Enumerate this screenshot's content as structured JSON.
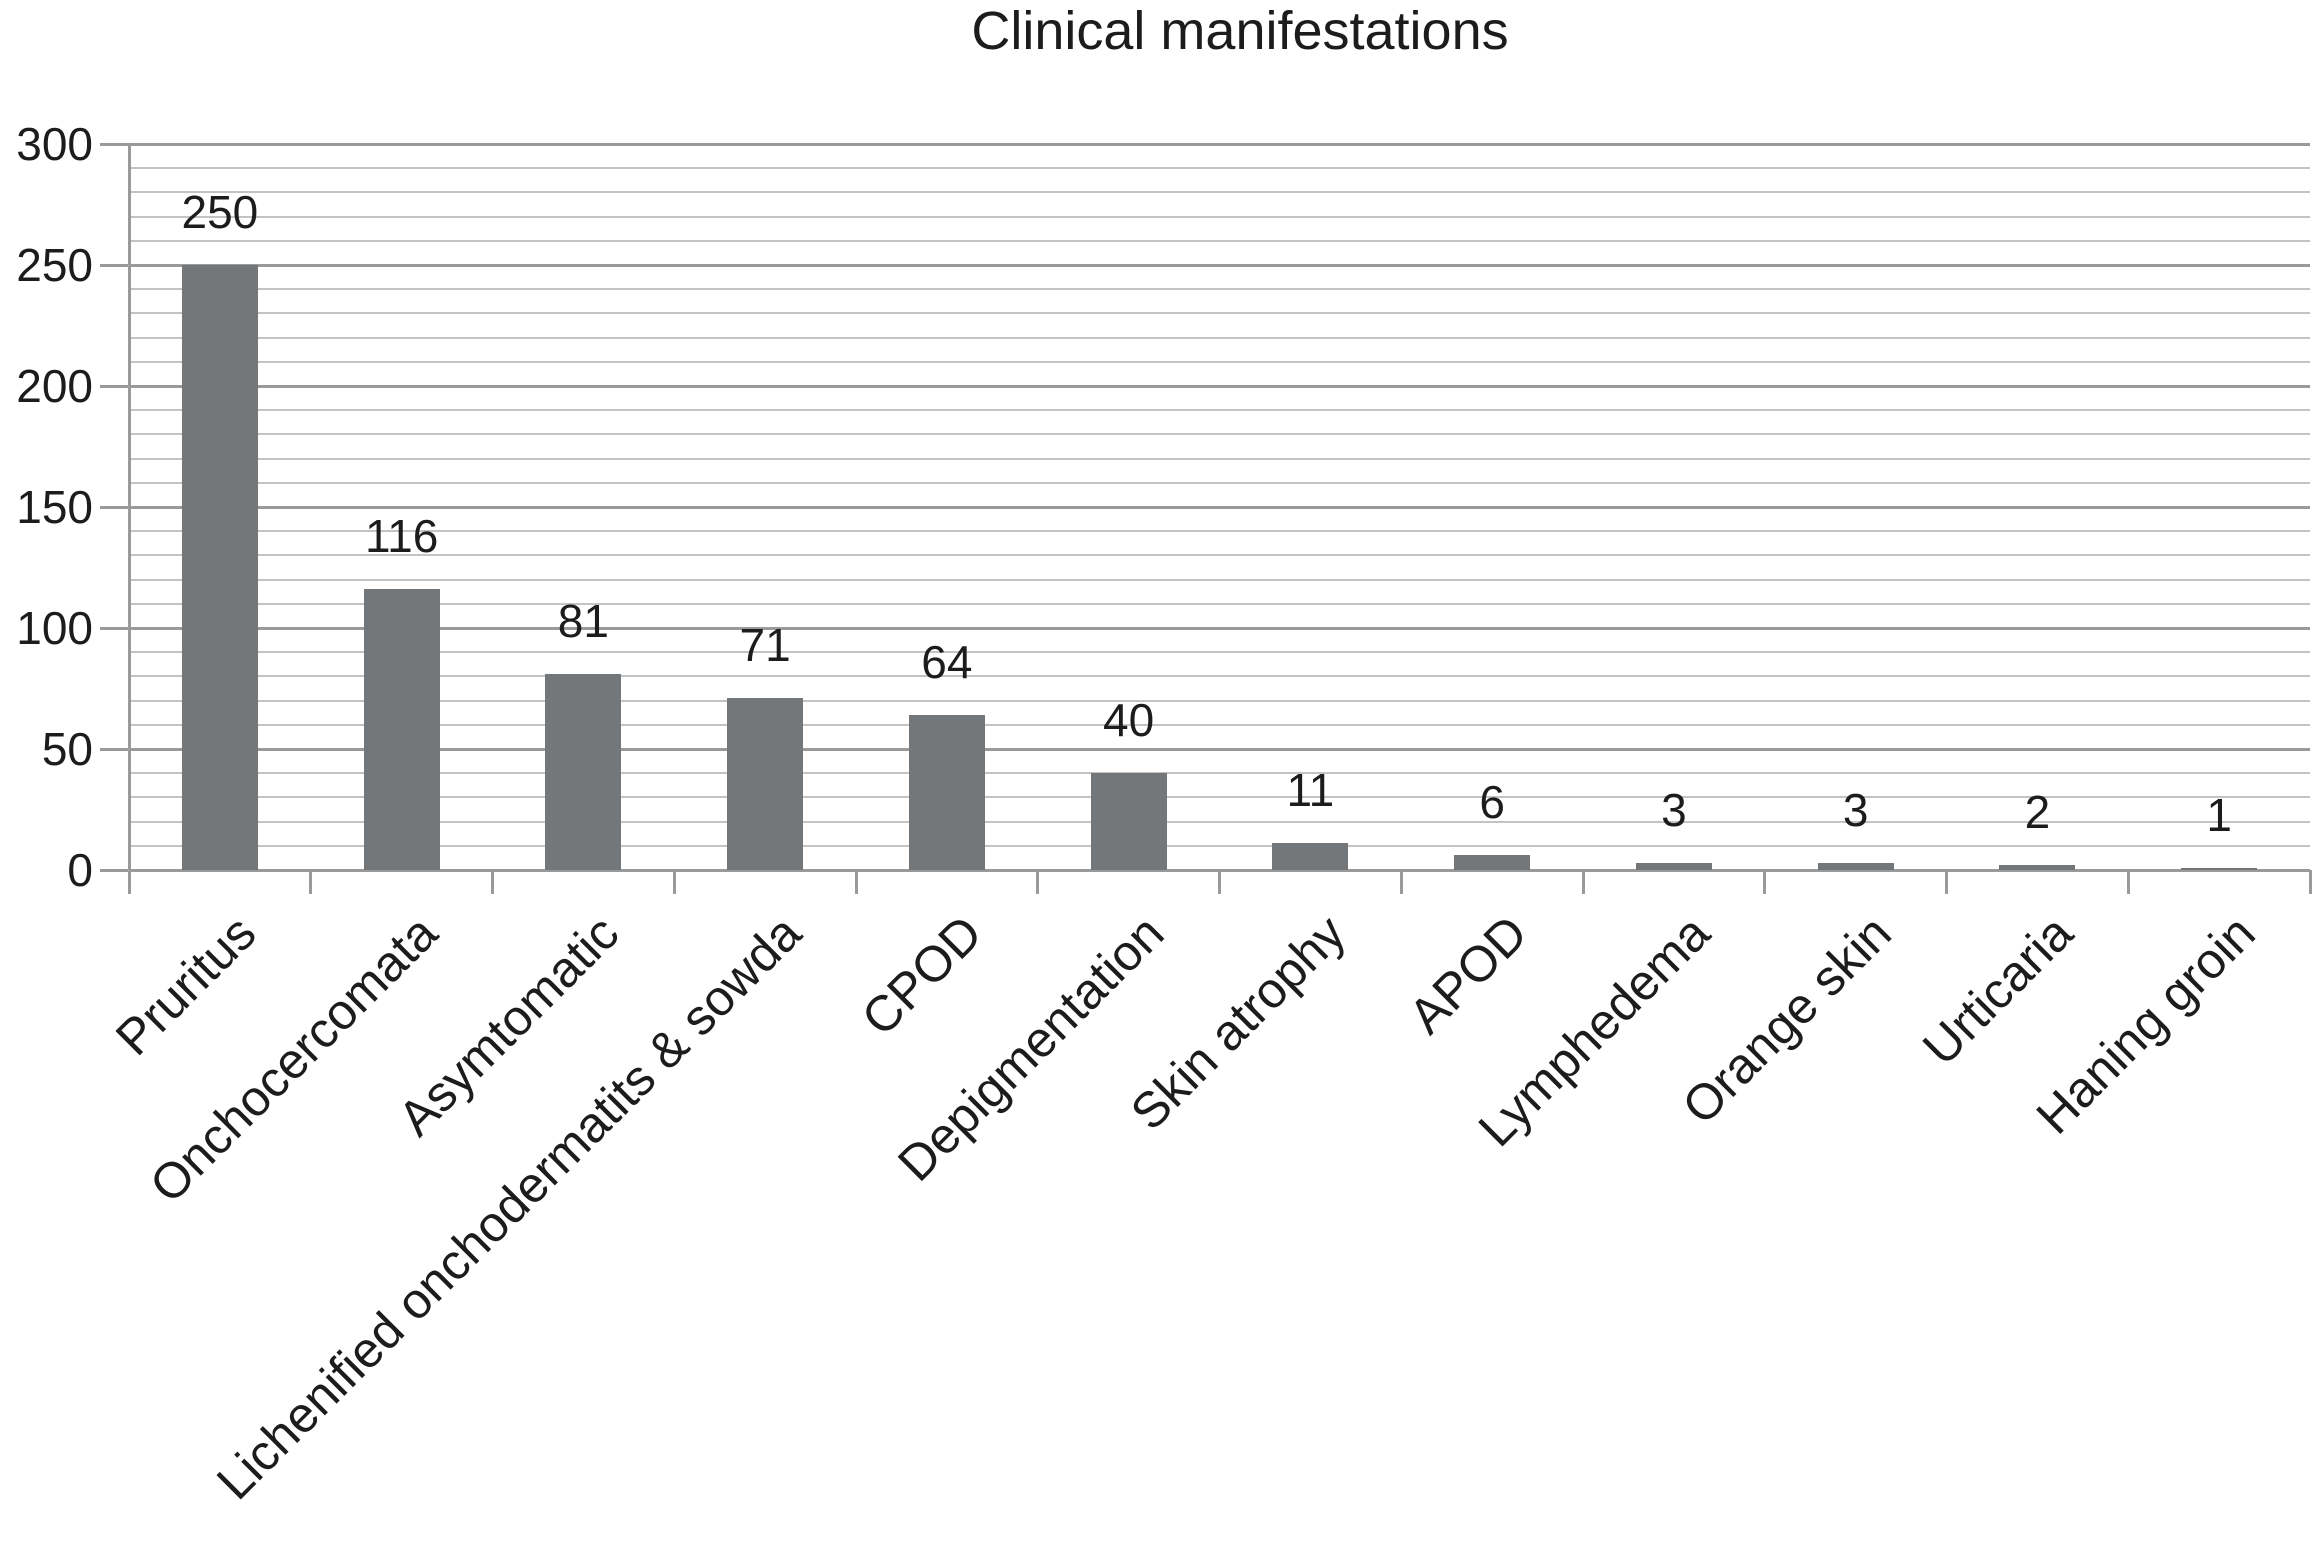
{
  "chart_data": {
    "type": "bar",
    "title": "Clinical manifestations",
    "categories": [
      "Pruritus",
      "Onchocercomata",
      "Asymtomatic",
      "Lichenified onchodermatits & sowda",
      "CPOD",
      "Depigmentation",
      "Skin atrophy",
      "APOD",
      "Lymphedema",
      "Orange skin",
      "Urticaria",
      "Haning groin"
    ],
    "values": [
      250,
      116,
      81,
      71,
      64,
      40,
      11,
      6,
      3,
      3,
      2,
      1
    ],
    "xlabel": "",
    "ylabel": "",
    "ylim": [
      0,
      300
    ],
    "yticks": [
      0,
      50,
      100,
      150,
      200,
      250,
      300
    ],
    "ytick_minor_step": 10,
    "grid": true,
    "legend": false,
    "label_rotation_deg": 45,
    "colors": {
      "bar": "#747779",
      "gridline_minor": "#c3c3c3",
      "gridline_major": "#9a9a9a",
      "axis": "#9a9a9a",
      "text": "#1c1c1c",
      "background": "#ffffff"
    }
  }
}
